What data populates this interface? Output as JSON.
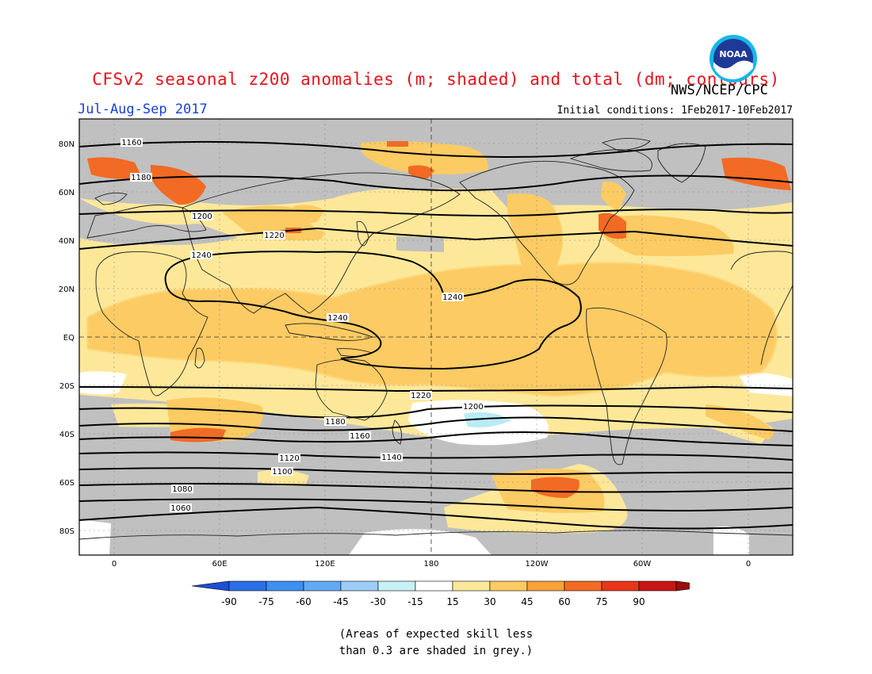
{
  "header": {
    "title": "CFSv2 seasonal z200 anomalies (m; shaded) and total (dm; contours)",
    "org": "NWS/NCEP/CPC",
    "logo_text": "NOAA",
    "season": "Jul-Aug-Sep 2017",
    "initial_conditions": "Initial conditions: 1Feb2017-10Feb2017"
  },
  "map": {
    "lat_labels": [
      "80N",
      "60N",
      "40N",
      "20N",
      "EQ",
      "20S",
      "40S",
      "60S",
      "80S"
    ],
    "lon_labels": [
      "0",
      "60E",
      "120E",
      "180",
      "120W",
      "60W",
      "0"
    ],
    "contour_labels": [
      "1160",
      "1180",
      "1200",
      "1220",
      "1240",
      "1240",
      "1240",
      "1220",
      "1200",
      "1180",
      "1160",
      "1140",
      "1120",
      "1100",
      "1080",
      "1060"
    ]
  },
  "colorbar": {
    "ticks": [
      "-90",
      "-75",
      "-60",
      "-45",
      "-30",
      "-15",
      "15",
      "30",
      "45",
      "60",
      "75",
      "90"
    ],
    "colors": [
      "#1a4fd6",
      "#2a6fe6",
      "#3d8ff0",
      "#64a9f5",
      "#9ccdf8",
      "#c7f1f5",
      "#ffffff",
      "#fde89a",
      "#fccb63",
      "#f9a13a",
      "#f26a24",
      "#e8351a",
      "#c81515",
      "#9a0d0d"
    ]
  },
  "note": {
    "line1": "(Areas of expected skill less",
    "line2": "than 0.3 are shaded in grey.)"
  }
}
